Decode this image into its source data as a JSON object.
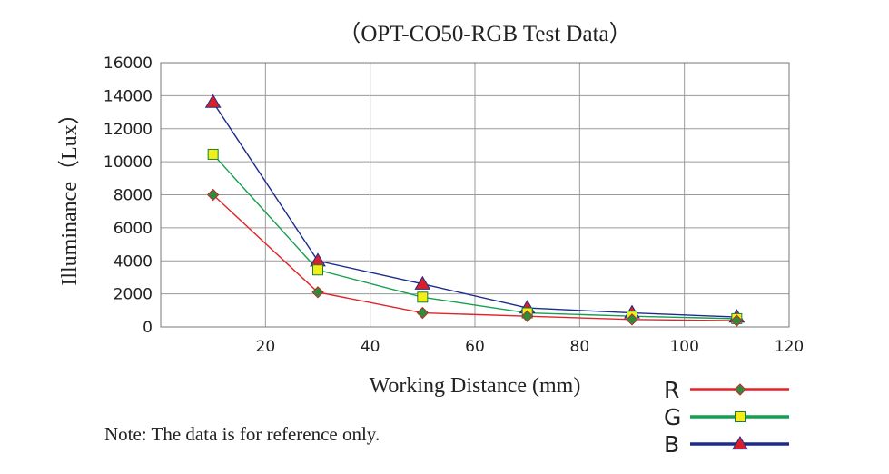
{
  "chart_data": {
    "type": "line",
    "title": "（OPT-CO50-RGB Test Data）",
    "xlabel": "Working Distance (mm)",
    "ylabel": "Illuminance（Lux）",
    "xlim": [
      0,
      120
    ],
    "ylim": [
      0,
      16000
    ],
    "x_ticks": [
      20,
      40,
      60,
      80,
      100,
      120
    ],
    "y_ticks": [
      0,
      2000,
      4000,
      6000,
      8000,
      10000,
      12000,
      14000,
      16000
    ],
    "grid": true,
    "legend_position": "bottom-right",
    "x": [
      10,
      30,
      50,
      70,
      90,
      110
    ],
    "series": [
      {
        "name": "R",
        "values": [
          8000,
          2100,
          850,
          650,
          450,
          380
        ],
        "line_color": "#e0242b",
        "marker": "diamond",
        "marker_color": "#2e8b3a"
      },
      {
        "name": "G",
        "values": [
          10450,
          3450,
          1800,
          850,
          650,
          500
        ],
        "line_color": "#14a050",
        "marker": "square",
        "marker_color": "#f2ee1a"
      },
      {
        "name": "B",
        "values": [
          13600,
          4000,
          2600,
          1150,
          850,
          600
        ],
        "line_color": "#1c2c8c",
        "marker": "triangle",
        "marker_color": "#d8202a"
      }
    ],
    "note": "Note: The data is for reference only."
  }
}
